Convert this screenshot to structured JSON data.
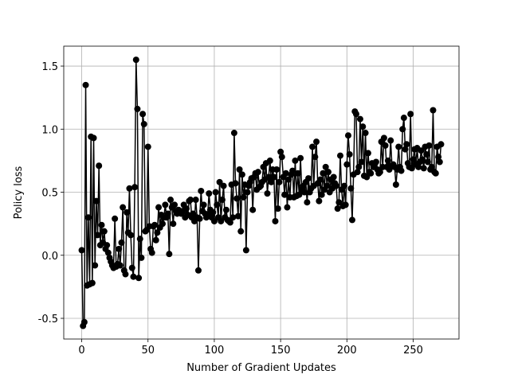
{
  "chart_data": {
    "type": "line",
    "xlabel": "Number of Gradient Updates",
    "ylabel": "Policy loss",
    "color": "#000000",
    "grid": true,
    "xlim": [
      -13.55,
      284.55
    ],
    "ylim": [
      -0.664,
      1.658
    ],
    "xticks": [
      0,
      50,
      100,
      150,
      200,
      250
    ],
    "yticks": [
      -0.5,
      {
        "value": 0,
        "label": "0.0"
      },
      0.5,
      {
        "value": 1,
        "label": "1.0"
      },
      1.5
    ],
    "x": [
      0,
      1,
      2,
      3,
      4,
      5,
      6,
      7,
      8,
      9,
      10,
      11,
      12,
      13,
      14,
      15,
      16,
      17,
      18,
      19,
      20,
      21,
      22,
      23,
      24,
      25,
      26,
      27,
      28,
      29,
      30,
      31,
      32,
      33,
      34,
      35,
      36,
      37,
      38,
      39,
      40,
      41,
      42,
      43,
      44,
      45,
      46,
      47,
      48,
      49,
      50,
      51,
      52,
      53,
      54,
      55,
      56,
      57,
      58,
      59,
      60,
      61,
      62,
      63,
      64,
      65,
      66,
      67,
      68,
      69,
      70,
      71,
      72,
      73,
      74,
      75,
      76,
      77,
      78,
      79,
      80,
      81,
      82,
      83,
      84,
      85,
      86,
      87,
      88,
      89,
      90,
      91,
      92,
      93,
      94,
      95,
      96,
      97,
      98,
      99,
      100,
      101,
      102,
      103,
      104,
      105,
      106,
      107,
      108,
      109,
      110,
      111,
      112,
      113,
      114,
      115,
      116,
      117,
      118,
      119,
      120,
      121,
      122,
      123,
      124,
      125,
      126,
      127,
      128,
      129,
      130,
      131,
      132,
      133,
      134,
      135,
      136,
      137,
      138,
      139,
      140,
      141,
      142,
      143,
      144,
      145,
      146,
      147,
      148,
      149,
      150,
      151,
      152,
      153,
      154,
      155,
      156,
      157,
      158,
      159,
      160,
      161,
      162,
      163,
      164,
      165,
      166,
      167,
      168,
      169,
      170,
      171,
      172,
      173,
      174,
      175,
      176,
      177,
      178,
      179,
      180,
      181,
      182,
      183,
      184,
      185,
      186,
      187,
      188,
      189,
      190,
      191,
      192,
      193,
      194,
      195,
      196,
      197,
      198,
      199,
      200,
      201,
      202,
      203,
      204,
      205,
      206,
      207,
      208,
      209,
      210,
      211,
      212,
      213,
      214,
      215,
      216,
      217,
      218,
      219,
      220,
      221,
      222,
      223,
      224,
      225,
      226,
      227,
      228,
      229,
      230,
      231,
      232,
      233,
      234,
      235,
      236,
      237,
      238,
      239,
      240,
      241,
      242,
      243,
      244,
      245,
      246,
      247,
      248,
      249,
      250,
      251,
      252,
      253,
      254,
      255,
      256,
      257,
      258,
      259,
      260,
      261,
      262,
      263,
      264,
      265,
      266,
      267,
      268,
      269,
      270,
      271
    ],
    "values": [
      0.04,
      -0.56,
      -0.53,
      1.35,
      -0.24,
      0.3,
      -0.23,
      0.94,
      -0.22,
      0.93,
      -0.08,
      0.43,
      0.16,
      0.71,
      0.08,
      0.24,
      0.1,
      0.19,
      0.05,
      0.08,
      0.02,
      -0.02,
      -0.05,
      -0.08,
      -0.1,
      0.29,
      -0.09,
      -0.07,
      0.05,
      -0.08,
      0.1,
      0.38,
      -0.12,
      -0.15,
      0.34,
      0.18,
      0.53,
      0.16,
      -0.1,
      -0.17,
      0.54,
      1.55,
      1.16,
      -0.18,
      0.13,
      -0.02,
      1.12,
      1.04,
      0.19,
      0.2,
      0.86,
      0.23,
      0.05,
      0.02,
      0.23,
      0.24,
      0.12,
      0.18,
      0.38,
      0.22,
      0.32,
      0.25,
      0.3,
      0.4,
      0.3,
      0.33,
      0.01,
      0.44,
      0.38,
      0.25,
      0.4,
      0.35,
      0.33,
      0.36,
      0.34,
      0.33,
      0.35,
      0.4,
      0.3,
      0.37,
      0.32,
      0.43,
      0.44,
      0.3,
      0.33,
      0.27,
      0.44,
      0.3,
      -0.12,
      0.29,
      0.51,
      0.35,
      0.4,
      0.33,
      0.3,
      0.32,
      0.49,
      0.36,
      0.3,
      0.34,
      0.27,
      0.5,
      0.4,
      0.3,
      0.58,
      0.27,
      0.44,
      0.55,
      0.3,
      0.36,
      0.28,
      0.27,
      0.26,
      0.56,
      0.3,
      0.97,
      0.57,
      0.45,
      0.31,
      0.68,
      0.19,
      0.64,
      0.46,
      0.56,
      0.04,
      0.5,
      0.55,
      0.58,
      0.61,
      0.36,
      0.62,
      0.65,
      0.52,
      0.66,
      0.54,
      0.55,
      0.58,
      0.7,
      0.6,
      0.73,
      0.49,
      0.62,
      0.75,
      0.58,
      0.68,
      0.62,
      0.27,
      0.68,
      0.37,
      0.58,
      0.82,
      0.78,
      0.62,
      0.48,
      0.65,
      0.38,
      0.6,
      0.46,
      0.64,
      0.67,
      0.46,
      0.75,
      0.47,
      0.65,
      0.48,
      0.77,
      0.52,
      0.55,
      0.5,
      0.58,
      0.42,
      0.61,
      0.5,
      0.53,
      0.86,
      0.55,
      0.78,
      0.9,
      0.57,
      0.43,
      0.6,
      0.48,
      0.65,
      0.52,
      0.7,
      0.55,
      0.66,
      0.5,
      0.6,
      0.53,
      0.62,
      0.57,
      0.55,
      0.37,
      0.42,
      0.79,
      0.52,
      0.39,
      0.55,
      0.4,
      0.72,
      0.95,
      0.8,
      0.53,
      0.28,
      0.64,
      1.14,
      1.12,
      0.66,
      0.7,
      1.08,
      0.74,
      1.02,
      0.63,
      0.97,
      0.62,
      0.81,
      0.66,
      0.65,
      0.73,
      0.7,
      0.72,
      0.74,
      0.68,
      0.65,
      0.66,
      0.9,
      0.7,
      0.93,
      0.87,
      0.7,
      0.75,
      0.68,
      0.91,
      0.71,
      0.72,
      0.7,
      0.56,
      0.68,
      0.86,
      0.7,
      0.67,
      1.0,
      1.09,
      0.84,
      0.88,
      0.73,
      0.7,
      1.12,
      0.69,
      0.76,
      0.84,
      0.72,
      0.85,
      0.7,
      0.74,
      0.83,
      0.76,
      0.69,
      0.86,
      0.8,
      0.74,
      0.87,
      0.68,
      0.7,
      1.15,
      0.66,
      0.65,
      0.86,
      0.78,
      0.74,
      0.88
    ]
  }
}
